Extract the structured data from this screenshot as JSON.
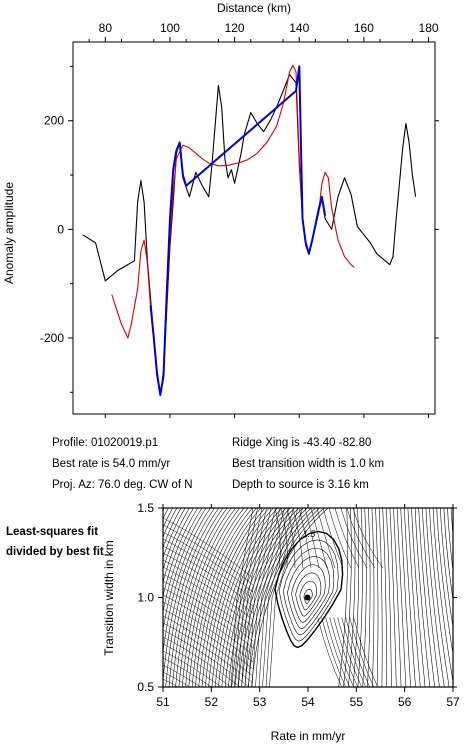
{
  "chart_data": [
    {
      "type": "line",
      "title": "",
      "xlabel": "Distance (km)",
      "ylabel": "Anomaly amplitude",
      "xlim": [
        70,
        182
      ],
      "ylim": [
        -340,
        345
      ],
      "x_ticks": [
        "80",
        "100",
        "120",
        "140",
        "160",
        "180"
      ],
      "y_ticks": [
        "200",
        "0",
        "-200"
      ],
      "series": [
        {
          "color": "#000000",
          "points": [
            [
              73,
              -10
            ],
            [
              77,
              -25
            ],
            [
              80,
              -95
            ],
            [
              84,
              -75
            ],
            [
              89,
              -58
            ],
            [
              90,
              50
            ],
            [
              91,
              90
            ],
            [
              92,
              50
            ],
            [
              93,
              -55
            ],
            [
              95,
              -200
            ],
            [
              96,
              -270
            ],
            [
              97,
              -305
            ],
            [
              98,
              -265
            ],
            [
              100,
              -30
            ],
            [
              101,
              50
            ],
            [
              102,
              140
            ],
            [
              103,
              160
            ],
            [
              104,
              95
            ],
            [
              106,
              60
            ],
            [
              108,
              105
            ],
            [
              110,
              80
            ],
            [
              112,
              60
            ],
            [
              113,
              120
            ],
            [
              115,
              265
            ],
            [
              116,
              225
            ],
            [
              117,
              130
            ],
            [
              118,
              95
            ],
            [
              119,
              110
            ],
            [
              120,
              85
            ],
            [
              122,
              140
            ],
            [
              123,
              175
            ],
            [
              125,
              215
            ],
            [
              127,
              195
            ],
            [
              129,
              180
            ],
            [
              131,
              200
            ],
            [
              133,
              225
            ],
            [
              135,
              255
            ],
            [
              137,
              285
            ],
            [
              139,
              270
            ],
            [
              140,
              120
            ],
            [
              141,
              20
            ],
            [
              142,
              -25
            ],
            [
              143,
              -45
            ],
            [
              144,
              -20
            ],
            [
              146,
              40
            ],
            [
              147,
              55
            ],
            [
              148,
              20
            ],
            [
              150,
              0
            ],
            [
              152,
              60
            ],
            [
              154,
              95
            ],
            [
              156,
              65
            ],
            [
              158,
              5
            ],
            [
              160,
              -10
            ],
            [
              162,
              -25
            ],
            [
              164,
              -45
            ],
            [
              166,
              -55
            ],
            [
              168,
              -65
            ],
            [
              169,
              -50
            ],
            [
              170,
              20
            ],
            [
              172,
              150
            ],
            [
              173,
              195
            ],
            [
              174,
              160
            ],
            [
              175,
              100
            ],
            [
              176,
              60
            ]
          ]
        },
        {
          "color": "#dd0000",
          "points": [
            [
              82,
              -120
            ],
            [
              85,
              -175
            ],
            [
              87,
              -200
            ],
            [
              88,
              -175
            ],
            [
              90,
              -110
            ],
            [
              91,
              -40
            ],
            [
              92,
              -20
            ],
            [
              93,
              -60
            ],
            [
              94,
              -145
            ],
            [
              96,
              -260
            ],
            [
              97,
              -305
            ],
            [
              98,
              -260
            ],
            [
              100,
              -20
            ],
            [
              101,
              70
            ],
            [
              102,
              130
            ],
            [
              104,
              155
            ],
            [
              106,
              150
            ],
            [
              108,
              140
            ],
            [
              110,
              130
            ],
            [
              112,
              122
            ],
            [
              115,
              117
            ],
            [
              118,
              118
            ],
            [
              121,
              122
            ],
            [
              124,
              128
            ],
            [
              127,
              140
            ],
            [
              130,
              160
            ],
            [
              133,
              190
            ],
            [
              135,
              230
            ],
            [
              137,
              290
            ],
            [
              138,
              302
            ],
            [
              139,
              290
            ],
            [
              140,
              130
            ],
            [
              141,
              20
            ],
            [
              142,
              -30
            ],
            [
              143,
              -45
            ],
            [
              144,
              -20
            ],
            [
              146,
              30
            ],
            [
              147,
              85
            ],
            [
              148,
              105
            ],
            [
              149,
              95
            ],
            [
              150,
              40
            ],
            [
              152,
              -20
            ],
            [
              154,
              -50
            ],
            [
              156,
              -65
            ],
            [
              157,
              -70
            ]
          ]
        },
        {
          "color": "#0000cc",
          "points": [
            [
              94,
              -140
            ],
            [
              95,
              -200
            ],
            [
              96,
              -265
            ],
            [
              97,
              -305
            ],
            [
              98,
              -270
            ],
            [
              99,
              -120
            ],
            [
              100,
              20
            ],
            [
              101,
              110
            ],
            [
              102,
              145
            ],
            [
              103,
              160
            ],
            [
              104,
              100
            ],
            [
              105,
              80
            ],
            [
              139,
              255
            ],
            [
              140,
              300
            ],
            [
              141,
              20
            ],
            [
              142,
              -25
            ],
            [
              143,
              -45
            ],
            [
              144,
              -20
            ],
            [
              146,
              35
            ],
            [
              147,
              60
            ],
            [
              148,
              25
            ]
          ]
        }
      ]
    },
    {
      "type": "contour",
      "xlabel": "Rate in mm/yr",
      "ylabel": "Transition width in km",
      "xlim": [
        51,
        57
      ],
      "ylim": [
        0.5,
        1.5
      ],
      "x_ticks": [
        "51",
        "52",
        "53",
        "54",
        "55",
        "56",
        "57"
      ],
      "y_ticks": [
        "1.5",
        "1.0",
        "0.5"
      ],
      "best_fit": {
        "x": 54.0,
        "y": 1.0
      },
      "contour_label": "1.5"
    }
  ],
  "info": {
    "profile": "Profile: 01020019.p1",
    "best_rate": "Best rate is 54.0 mm/yr",
    "proj_az": "Proj. Az: 76.0 deg. CW of N",
    "ridge_xing": "Ridge Xing is -43.40 -82.80",
    "best_width": "Best transition width is 1.0 km",
    "depth": "Depth to source is   3.16 km"
  },
  "side_note": "Least-squares fit divided by best fit"
}
